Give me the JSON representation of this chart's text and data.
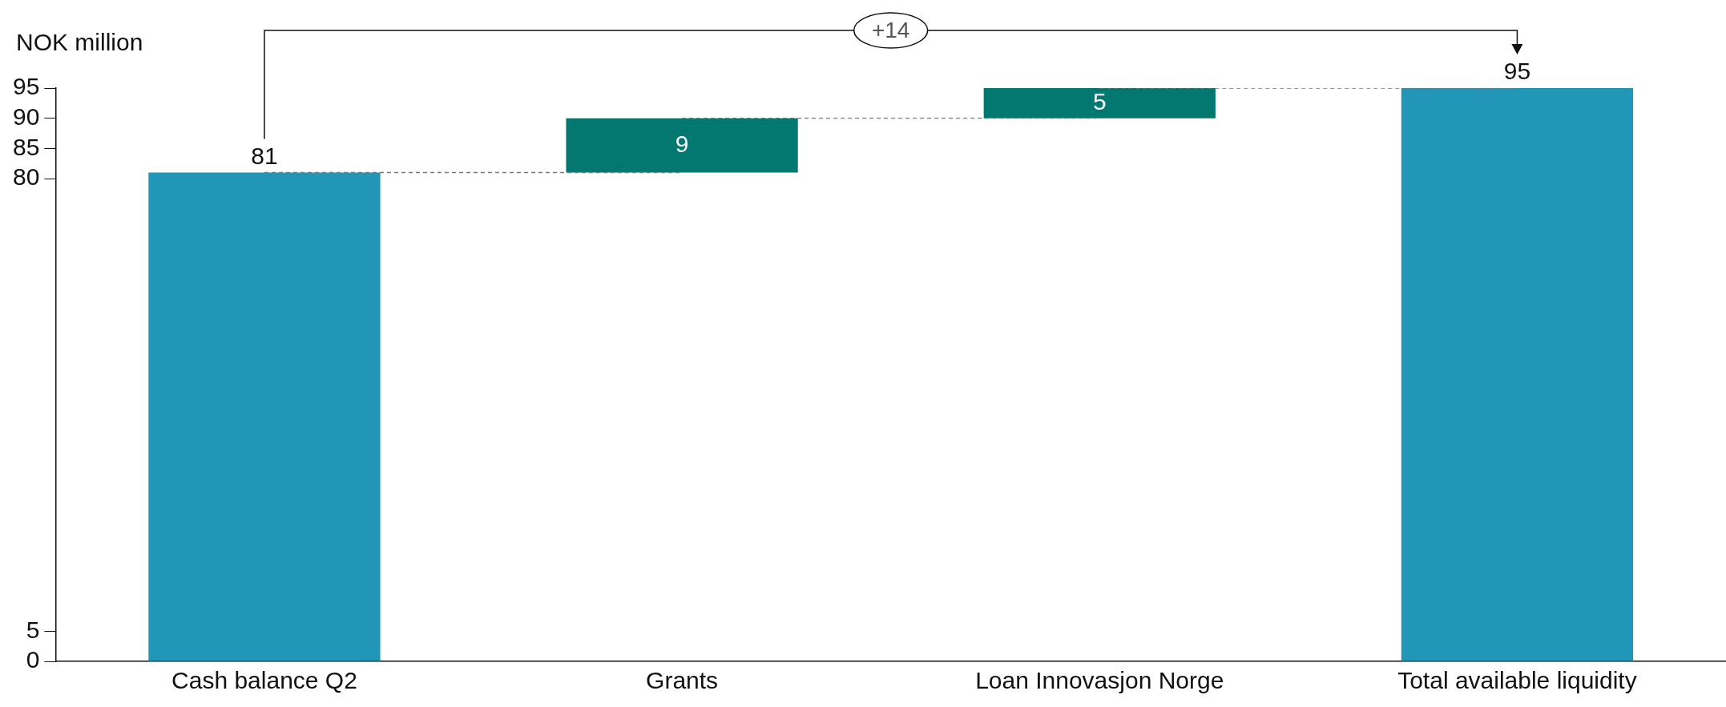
{
  "chart_data": {
    "type": "bar",
    "ylabel": "NOK million",
    "categories": [
      "Cash balance Q2",
      "Grants",
      "Loan Innovasjon Norge",
      "Total available liquidity"
    ],
    "values": [
      81,
      9,
      5,
      95
    ],
    "base": [
      0,
      81,
      90,
      0
    ],
    "colors": [
      "#2196b6",
      "#037870",
      "#037870",
      "#2196b6"
    ],
    "ylim": [
      0,
      95
    ],
    "yticks": [
      0,
      5,
      80,
      85,
      90,
      95
    ],
    "series": [
      {
        "type": "line",
        "color": "#777777",
        "line_style": "dashed",
        "marker": "none",
        "values": [
          81,
          81,
          null,
          null
        ],
        "value_labels": [
          null,
          null,
          null,
          null
        ]
      },
      {
        "type": "line",
        "color": "#777777",
        "line_style": "dashed",
        "marker": "none",
        "values": [
          null,
          90,
          90,
          null
        ],
        "value_labels": [
          null,
          null,
          null,
          null
        ]
      },
      {
        "type": "line",
        "color": "#777777",
        "line_style": "dashed",
        "marker": "none",
        "values": [
          null,
          null,
          95,
          95
        ],
        "value_labels": [
          null,
          null,
          null,
          null
        ]
      }
    ],
    "data_labels": true,
    "grid": false,
    "legend": false,
    "annotations": [
      "+14"
    ]
  }
}
